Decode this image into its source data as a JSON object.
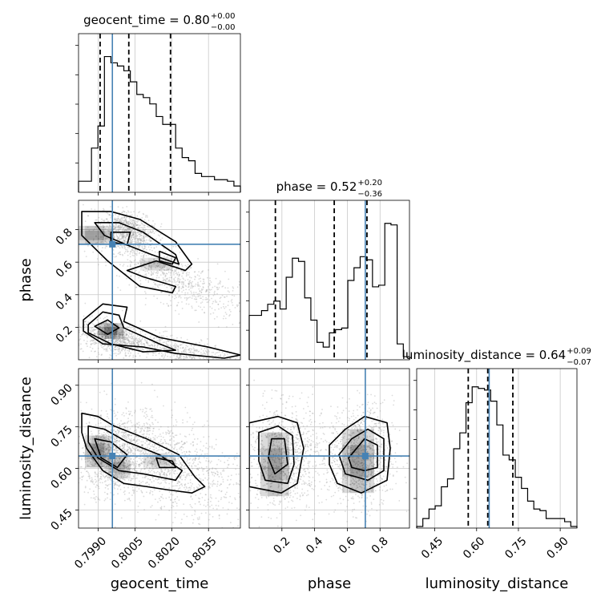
{
  "chart_data": {
    "type": "corner",
    "parameters": [
      "geocent_time",
      "phase",
      "luminosity_distance"
    ],
    "axis_labels": {
      "geocent_time": "geocent_time",
      "phase": "phase",
      "luminosity_distance": "luminosity_distance"
    },
    "titles": {
      "geocent_time": {
        "name": "geocent_time",
        "value": "0.80",
        "plus": "+0.00",
        "minus": "−0.00"
      },
      "phase": {
        "name": "phase",
        "value": "0.52",
        "plus": "+0.20",
        "minus": "−0.36"
      },
      "luminosity_distance": {
        "name": "luminosity_distance",
        "value": "0.64",
        "plus": "+0.09",
        "minus": "−0.07"
      }
    },
    "ranges": {
      "geocent_time": [
        0.7982,
        0.8048
      ],
      "phase": [
        0.0,
        0.98
      ],
      "luminosity_distance": [
        0.385,
        0.96
      ]
    },
    "ticks": {
      "geocent_time": {
        "values": [
          0.799,
          0.8005,
          0.802,
          0.8035
        ],
        "labels": [
          "0.7990",
          "0.8005",
          "0.8020",
          "0.8035"
        ]
      },
      "phase": {
        "values": [
          0.2,
          0.4,
          0.6,
          0.8
        ],
        "labels": [
          "0.2",
          "0.4",
          "0.6",
          "0.8"
        ]
      },
      "luminosity_distance": {
        "values": [
          0.45,
          0.6,
          0.75,
          0.9
        ],
        "labels": [
          "0.45",
          "0.60",
          "0.75",
          "0.90"
        ]
      }
    },
    "truths": {
      "geocent_time": 0.79958,
      "phase": 0.71,
      "luminosity_distance": 0.645
    },
    "quantiles": {
      "geocent_time": [
        0.79908,
        0.80025,
        0.80195
      ],
      "phase": [
        0.16,
        0.52,
        0.72
      ],
      "luminosity_distance": [
        0.57,
        0.64,
        0.73
      ]
    },
    "histograms": {
      "geocent_time": [
        0.07,
        0.07,
        0.28,
        0.42,
        0.86,
        0.82,
        0.8,
        0.77,
        0.7,
        0.62,
        0.6,
        0.56,
        0.48,
        0.43,
        0.43,
        0.28,
        0.22,
        0.2,
        0.12,
        0.1,
        0.1,
        0.08,
        0.08,
        0.07,
        0.04
      ],
      "phase": [
        0.28,
        0.28,
        0.31,
        0.35,
        0.37,
        0.32,
        0.52,
        0.64,
        0.62,
        0.39,
        0.25,
        0.11,
        0.08,
        0.17,
        0.19,
        0.2,
        0.5,
        0.58,
        0.65,
        0.63,
        0.46,
        0.47,
        0.86,
        0.85,
        0.1,
        0.02
      ],
      "luminosity_distance": [
        0.01,
        0.06,
        0.12,
        0.14,
        0.26,
        0.31,
        0.5,
        0.6,
        0.79,
        0.89,
        0.88,
        0.87,
        0.8,
        0.65,
        0.46,
        0.43,
        0.32,
        0.25,
        0.17,
        0.12,
        0.11,
        0.06,
        0.06,
        0.06,
        0.04,
        0.01
      ]
    },
    "grid": true
  }
}
